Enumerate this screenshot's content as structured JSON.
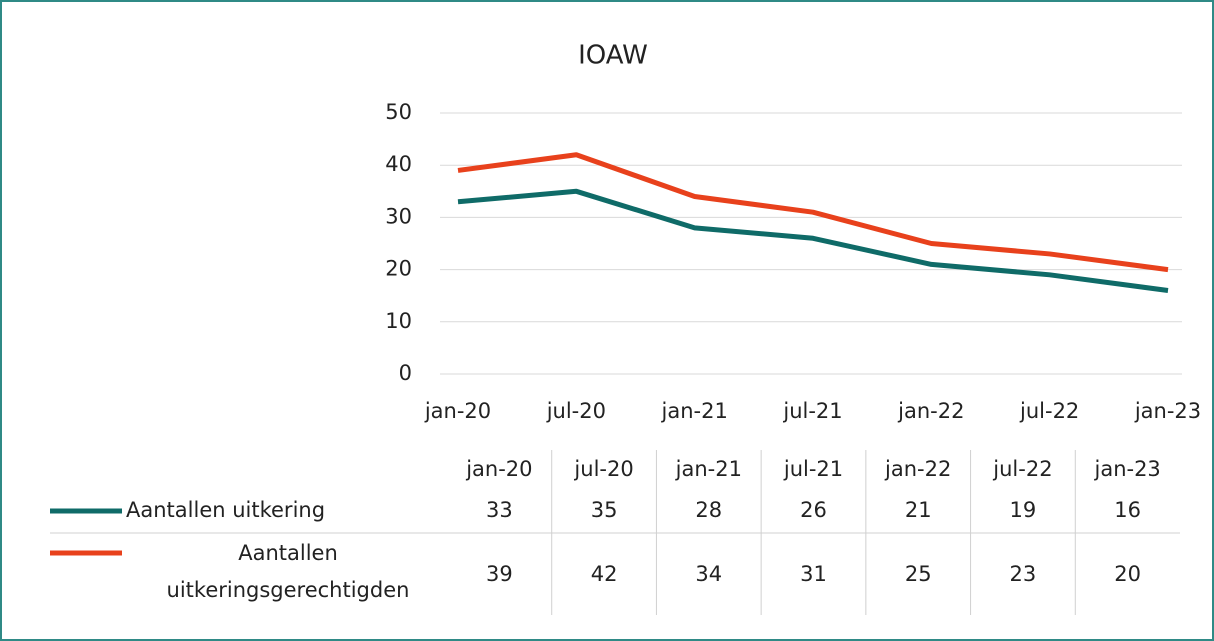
{
  "chart_data": {
    "type": "line",
    "title": "IOAW",
    "categories": [
      "jan-20",
      "jul-20",
      "jan-21",
      "jul-21",
      "jan-22",
      "jul-22",
      "jan-23"
    ],
    "series": [
      {
        "name": "Aantallen uitkering",
        "color": "#0f6b68",
        "values": [
          33,
          35,
          28,
          26,
          21,
          19,
          16
        ]
      },
      {
        "name": "Aantallen uitkeringsgerechtigden",
        "color": "#e8411c",
        "values": [
          39,
          42,
          34,
          31,
          25,
          23,
          20
        ]
      }
    ],
    "ylim": [
      0,
      50
    ],
    "yticks": [
      0,
      10,
      20,
      30,
      40,
      50
    ],
    "grid": true
  }
}
